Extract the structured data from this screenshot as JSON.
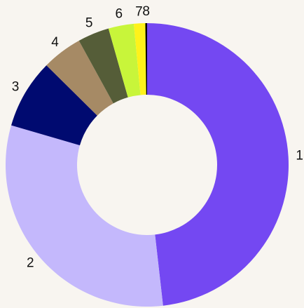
{
  "chart_data": {
    "type": "donut",
    "categories": [
      "1",
      "2",
      "3",
      "4",
      "5",
      "6",
      "7",
      "8"
    ],
    "values": [
      48.2,
      31.3,
      7.9,
      4.6,
      3.6,
      2.9,
      1.3,
      0.2
    ],
    "colors": [
      "#7448f2",
      "#c4b8fc",
      "#000a70",
      "#a68a65",
      "#555d38",
      "#c8f53a",
      "#fff21a",
      "#000000"
    ]
  }
}
